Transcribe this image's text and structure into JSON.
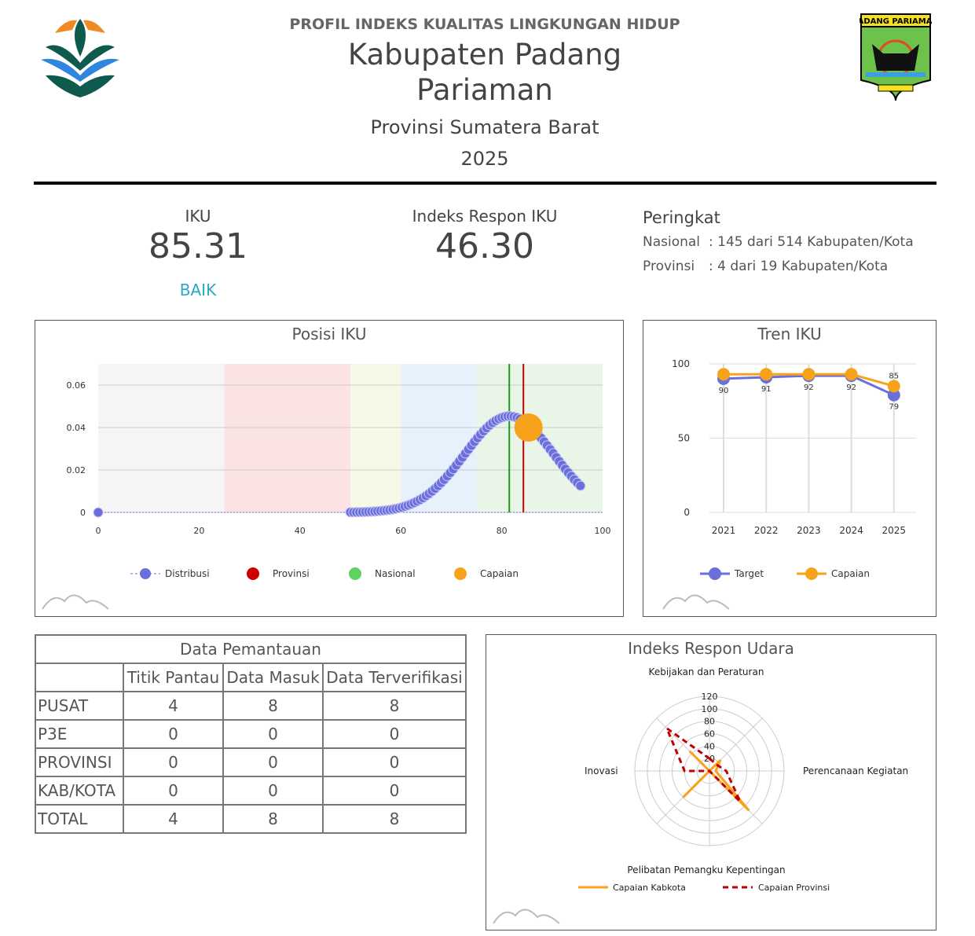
{
  "header": {
    "supertitle": "PROFIL INDEKS KUALITAS LINGKUNGAN HIDUP",
    "title_line1": "Kabupaten Padang",
    "title_line2": "Pariaman",
    "province": "Provinsi Sumatera Barat",
    "year": "2025",
    "right_logo_text": "PADANG PARIAMAN"
  },
  "stats": {
    "iku_label": "IKU",
    "iku_value": "85.31",
    "iku_category": "BAIK",
    "respon_label": "Indeks Respon IKU",
    "respon_value": "46.30",
    "rank_label": "Peringkat",
    "rank_nasional_label": "Nasional",
    "rank_nasional": ": 145 dari 514 Kabupaten/Kota",
    "rank_provinsi_label": "Provinsi",
    "rank_provinsi": ": 4 dari 19 Kabupaten/Kota"
  },
  "colors": {
    "distribusi": "#6b6fdc",
    "provinsi": "#d00000",
    "nasional": "#5fd35f",
    "capaian": "#f7a21b",
    "baik": "#2aa7c9"
  },
  "chart_data": [
    {
      "type": "scatter",
      "title": "Posisi IKU",
      "xlim": [
        0,
        100
      ],
      "ylim": [
        0,
        0.07
      ],
      "xticks": [
        "0",
        "20",
        "40",
        "60",
        "80",
        "100"
      ],
      "yticks": [
        "0",
        "0.02",
        "0.04",
        "0.06"
      ],
      "bands": [
        {
          "from": 0,
          "to": 25,
          "color": "#f5f5f5"
        },
        {
          "from": 25,
          "to": 50,
          "color": "#fce3e3"
        },
        {
          "from": 50,
          "to": 60,
          "color": "#f6f9e6"
        },
        {
          "from": 60,
          "to": 75,
          "color": "#e7f1fb"
        },
        {
          "from": 75,
          "to": 100,
          "color": "#e9f6e7"
        }
      ],
      "distribution": {
        "mean": 81.5,
        "sd": 8.8,
        "x_start": 50,
        "x_end": 96,
        "extra_points": [
          [
            0,
            0
          ]
        ]
      },
      "provinsi_x": 84.3,
      "nasional_x": 81.5,
      "capaian": {
        "x": 85.31,
        "y": 0.04
      },
      "legend": [
        "Distribusi",
        "Provinsi",
        "Nasional",
        "Capaian"
      ],
      "legend_position": "bottom"
    },
    {
      "type": "line",
      "title": "Tren IKU",
      "categories": [
        "2021",
        "2022",
        "2023",
        "2024",
        "2025"
      ],
      "ylim": [
        0,
        100
      ],
      "yticks": [
        "0",
        "50",
        "100"
      ],
      "series": [
        {
          "name": "Target",
          "values": [
            90,
            91,
            92,
            92,
            79
          ],
          "labels": [
            "90",
            "91",
            "92",
            "92",
            "79"
          ]
        },
        {
          "name": "Capaian",
          "values": [
            93,
            93,
            93,
            93,
            85
          ],
          "labels": [
            "",
            "",
            "",
            "",
            "85"
          ]
        }
      ],
      "legend_position": "bottom"
    },
    {
      "type": "radar",
      "title": "Indeks Respon Udara",
      "axes": [
        "Kebijakan dan Peraturan",
        "Perencanaan Kegiatan",
        "Pelibatan Pemangku Kepentingan",
        "Inovasi"
      ],
      "rlim": [
        0,
        120
      ],
      "rticks": [
        "20",
        "40",
        "60",
        "80",
        "100",
        "120"
      ],
      "spokes": 8,
      "series": [
        {
          "name": "Capaian Kabkota",
          "values": [
            0,
            25,
            10,
            90,
            0,
            60,
            0,
            45
          ]
        },
        {
          "name": "Capaian Provinsi",
          "values": [
            20,
            15,
            27,
            70,
            0,
            0,
            40,
            97
          ]
        }
      ],
      "legend_position": "bottom"
    }
  ],
  "table": {
    "title": "Data Pemantauan",
    "headers": [
      "",
      "Titik Pantau",
      "Data Masuk",
      "Data Terverifikasi"
    ],
    "rows": [
      [
        "PUSAT",
        "4",
        "8",
        "8"
      ],
      [
        "P3E",
        "0",
        "0",
        "0"
      ],
      [
        "PROVINSI",
        "0",
        "0",
        "0"
      ],
      [
        "KAB/KOTA",
        "0",
        "0",
        "0"
      ],
      [
        "TOTAL",
        "4",
        "8",
        "8"
      ]
    ]
  }
}
